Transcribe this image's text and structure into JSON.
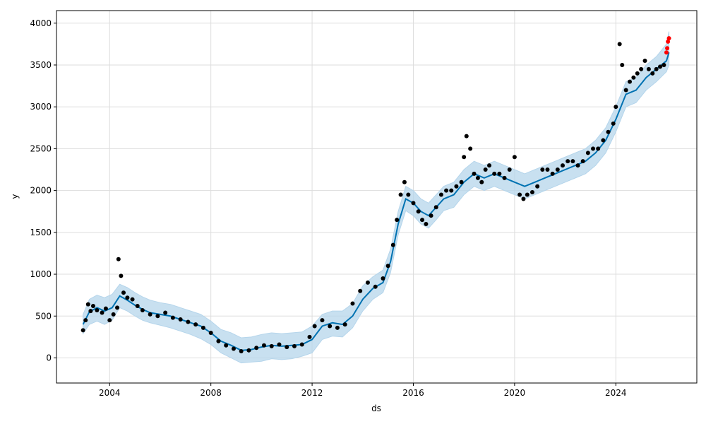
{
  "chart_data": {
    "type": "line",
    "title": "",
    "xlabel": "ds",
    "ylabel": "y",
    "xlim": [
      2001.9,
      2027.2
    ],
    "ylim": [
      -300,
      4150
    ],
    "x_ticks": [
      2004,
      2008,
      2012,
      2016,
      2020,
      2024
    ],
    "y_ticks": [
      0,
      500,
      1000,
      1500,
      2000,
      2500,
      3000,
      3500,
      4000
    ],
    "grid": true,
    "legend": "none",
    "colors": {
      "forecast": "#0072b2",
      "uncertainty": "#b5d5eb",
      "observed": "#000000",
      "recent": "#ff0000"
    },
    "series": [
      {
        "kind": "scatter",
        "color": "#000000",
        "x": [
          2002.95,
          2003.05,
          2003.15,
          2003.25,
          2003.35,
          2003.5,
          2003.7,
          2003.85,
          2004.0,
          2004.15,
          2004.3,
          2004.35,
          2004.45,
          2004.55,
          2004.7,
          2004.9,
          2005.1,
          2005.3,
          2005.6,
          2005.9,
          2006.2,
          2006.5,
          2006.8,
          2007.1,
          2007.4,
          2007.7,
          2008.0,
          2008.3,
          2008.6,
          2008.9,
          2009.2,
          2009.5,
          2009.8,
          2010.1,
          2010.4,
          2010.7,
          2011.0,
          2011.3,
          2011.6,
          2011.9,
          2012.1,
          2012.4,
          2012.7,
          2013.0,
          2013.3,
          2013.6,
          2013.9,
          2014.2,
          2014.5,
          2014.8,
          2015.0,
          2015.2,
          2015.35,
          2015.5,
          2015.65,
          2015.8,
          2016.0,
          2016.2,
          2016.35,
          2016.5,
          2016.7,
          2016.9,
          2017.1,
          2017.3,
          2017.5,
          2017.7,
          2017.9,
          2018.0,
          2018.1,
          2018.25,
          2018.4,
          2018.55,
          2018.7,
          2018.85,
          2019.0,
          2019.2,
          2019.4,
          2019.6,
          2019.8,
          2020.0,
          2020.2,
          2020.35,
          2020.5,
          2020.7,
          2020.9,
          2021.1,
          2021.3,
          2021.5,
          2021.7,
          2021.9,
          2022.1,
          2022.3,
          2022.5,
          2022.7,
          2022.9,
          2023.1,
          2023.3,
          2023.5,
          2023.7,
          2023.9,
          2024.0,
          2024.15,
          2024.25,
          2024.4,
          2024.55,
          2024.7,
          2024.85,
          2025.0,
          2025.15,
          2025.3,
          2025.45,
          2025.6,
          2025.75,
          2025.9
        ],
        "y": [
          330,
          450,
          640,
          560,
          620,
          570,
          540,
          590,
          450,
          520,
          600,
          1180,
          980,
          780,
          720,
          700,
          620,
          570,
          520,
          500,
          540,
          480,
          460,
          430,
          400,
          360,
          300,
          200,
          150,
          110,
          80,
          90,
          120,
          150,
          140,
          160,
          130,
          140,
          160,
          250,
          380,
          450,
          380,
          360,
          400,
          650,
          800,
          900,
          850,
          950,
          1100,
          1350,
          1650,
          1950,
          2100,
          1950,
          1850,
          1750,
          1650,
          1600,
          1700,
          1800,
          1950,
          2000,
          2000,
          2050,
          2100,
          2400,
          2650,
          2500,
          2200,
          2150,
          2100,
          2250,
          2300,
          2200,
          2200,
          2150,
          2250,
          2400,
          1950,
          1900,
          1950,
          1980,
          2050,
          2250,
          2250,
          2200,
          2250,
          2300,
          2350,
          2350,
          2300,
          2350,
          2450,
          2500,
          2500,
          2600,
          2700,
          2800,
          3000,
          3750,
          3500,
          3200,
          3300,
          3350,
          3400,
          3450,
          3550,
          3450,
          3400,
          3450,
          3480,
          3500
        ]
      },
      {
        "kind": "scatter",
        "color": "#ff0000",
        "x": [
          2026.0,
          2026.03,
          2026.06,
          2026.1
        ],
        "y": [
          3650,
          3700,
          3780,
          3820
        ]
      },
      {
        "kind": "line",
        "name": "yhat",
        "color": "#0072b2",
        "x": [
          2002.95,
          2003.2,
          2003.5,
          2003.8,
          2004.1,
          2004.4,
          2004.7,
          2005.0,
          2005.3,
          2005.6,
          2006.0,
          2006.4,
          2006.8,
          2007.2,
          2007.6,
          2008.0,
          2008.4,
          2008.8,
          2009.2,
          2009.6,
          2010.0,
          2010.4,
          2010.8,
          2011.2,
          2011.6,
          2012.0,
          2012.4,
          2012.8,
          2013.2,
          2013.6,
          2014.0,
          2014.4,
          2014.8,
          2015.1,
          2015.4,
          2015.7,
          2016.0,
          2016.3,
          2016.6,
          2016.9,
          2017.2,
          2017.6,
          2018.0,
          2018.4,
          2018.8,
          2019.2,
          2019.6,
          2020.0,
          2020.4,
          2020.8,
          2021.2,
          2021.6,
          2022.0,
          2022.4,
          2022.8,
          2023.2,
          2023.6,
          2024.0,
          2024.4,
          2024.8,
          2025.2,
          2025.6,
          2026.0,
          2026.1
        ],
        "y": [
          400,
          550,
          600,
          560,
          600,
          740,
          690,
          630,
          580,
          540,
          520,
          500,
          460,
          420,
          380,
          300,
          200,
          150,
          90,
          100,
          130,
          150,
          140,
          150,
          160,
          220,
          380,
          420,
          400,
          500,
          700,
          830,
          900,
          1150,
          1600,
          1900,
          1850,
          1750,
          1700,
          1800,
          1900,
          1950,
          2100,
          2200,
          2150,
          2200,
          2150,
          2100,
          2050,
          2100,
          2150,
          2200,
          2250,
          2300,
          2350,
          2450,
          2600,
          2850,
          3150,
          3200,
          3350,
          3450,
          3550,
          3650
        ]
      },
      {
        "kind": "band",
        "name": "uncertainty",
        "color": "#b5d5eb",
        "x": [
          2002.95,
          2003.2,
          2003.5,
          2003.8,
          2004.1,
          2004.4,
          2004.7,
          2005.0,
          2005.3,
          2005.6,
          2006.0,
          2006.4,
          2006.8,
          2007.2,
          2007.6,
          2008.0,
          2008.4,
          2008.8,
          2009.2,
          2009.6,
          2010.0,
          2010.4,
          2010.8,
          2011.2,
          2011.6,
          2012.0,
          2012.4,
          2012.8,
          2013.2,
          2013.6,
          2014.0,
          2014.4,
          2014.8,
          2015.1,
          2015.4,
          2015.7,
          2016.0,
          2016.3,
          2016.6,
          2016.9,
          2017.2,
          2017.6,
          2018.0,
          2018.4,
          2018.8,
          2019.2,
          2019.6,
          2020.0,
          2020.4,
          2020.8,
          2021.2,
          2021.6,
          2022.0,
          2022.4,
          2022.8,
          2023.2,
          2023.6,
          2024.0,
          2024.4,
          2024.8,
          2025.2,
          2025.6,
          2026.0,
          2026.1
        ],
        "lower": [
          290,
          400,
          440,
          400,
          450,
          600,
          560,
          500,
          450,
          420,
          390,
          360,
          320,
          280,
          230,
          160,
          60,
          0,
          -60,
          -50,
          -40,
          -10,
          -20,
          -10,
          20,
          60,
          220,
          260,
          250,
          360,
          560,
          700,
          780,
          1020,
          1470,
          1760,
          1700,
          1600,
          1550,
          1650,
          1760,
          1800,
          1950,
          2050,
          2000,
          2050,
          2000,
          1950,
          1900,
          1950,
          2000,
          2050,
          2100,
          2150,
          2200,
          2300,
          2450,
          2700,
          3000,
          3050,
          3200,
          3300,
          3420,
          3500
        ],
        "upper": [
          520,
          700,
          750,
          720,
          760,
          880,
          840,
          780,
          730,
          690,
          660,
          640,
          600,
          560,
          520,
          440,
          340,
          300,
          240,
          250,
          280,
          300,
          290,
          300,
          310,
          380,
          520,
          560,
          560,
          650,
          860,
          970,
          1050,
          1300,
          1750,
          2050,
          2000,
          1900,
          1850,
          1950,
          2050,
          2100,
          2250,
          2350,
          2300,
          2350,
          2300,
          2250,
          2200,
          2250,
          2300,
          2350,
          2400,
          2450,
          2500,
          2600,
          2750,
          3000,
          3300,
          3350,
          3500,
          3600,
          3750,
          3900
        ]
      }
    ]
  }
}
